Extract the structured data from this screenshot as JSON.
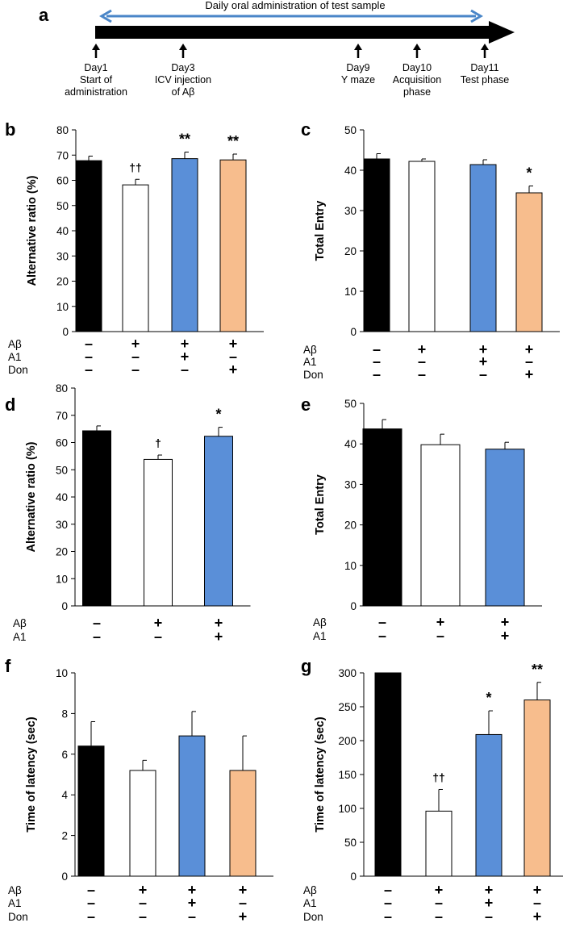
{
  "colors": {
    "black": "#000000",
    "white": "#ffffff",
    "blue": "#5a8fd8",
    "orange": "#f7bd8d",
    "timeline_arrow": "#4a86c8"
  },
  "timeline": {
    "panel_letter": "a",
    "banner": "Daily oral administration of test sample",
    "events": [
      {
        "lines": [
          "Day1",
          "Start of",
          "administration"
        ]
      },
      {
        "lines": [
          "Day3",
          "ICV injection",
          "of Aβ"
        ]
      },
      {
        "lines": [
          "Day9",
          "Y maze"
        ]
      },
      {
        "lines": [
          "Day10",
          "Acquisition",
          "phase"
        ]
      },
      {
        "lines": [
          "Day11",
          "Test phase"
        ]
      }
    ]
  },
  "treatment_labels": [
    "Aβ",
    "A1",
    "Don"
  ],
  "chart_data": [
    {
      "panel": "b",
      "type": "bar",
      "ylabel": "Alternative ratio (%)",
      "ylim": [
        0,
        80
      ],
      "yticks": [
        0,
        10,
        20,
        30,
        40,
        50,
        60,
        70,
        80
      ],
      "values": [
        67.8,
        58.2,
        68.6,
        68.1
      ],
      "errors": [
        1.8,
        2.2,
        2.6,
        2.3
      ],
      "colors": [
        "black",
        "white",
        "blue",
        "orange"
      ],
      "significance": [
        "",
        "††",
        "**",
        "**"
      ],
      "treatments": {
        "Aβ": [
          "–",
          "+",
          "+",
          "+"
        ],
        "A1": [
          "–",
          "–",
          "+",
          "–"
        ],
        "Don": [
          "–",
          "–",
          "–",
          "+"
        ]
      }
    },
    {
      "panel": "c",
      "type": "bar",
      "ylabel": "Total Entry",
      "ylim": [
        0,
        50
      ],
      "yticks": [
        0,
        10,
        20,
        30,
        40,
        50
      ],
      "values": [
        42.8,
        42.2,
        41.4,
        34.4
      ],
      "errors": [
        1.3,
        0.6,
        1.2,
        1.7
      ],
      "colors": [
        "black",
        "white",
        "blue",
        "orange"
      ],
      "significance": [
        "",
        "",
        "",
        "*"
      ],
      "treatments": {
        "Aβ": [
          "–",
          "+",
          "+",
          "+"
        ],
        "A1": [
          "–",
          "–",
          "+",
          "–"
        ],
        "Don": [
          "–",
          "–",
          "–",
          "+"
        ]
      }
    },
    {
      "panel": "d",
      "type": "bar",
      "ylabel": "Alternative ratio (%)",
      "ylim": [
        0,
        80
      ],
      "yticks": [
        0,
        10,
        20,
        30,
        40,
        50,
        60,
        70,
        80
      ],
      "values": [
        64.3,
        53.8,
        62.3
      ],
      "errors": [
        1.8,
        1.6,
        3.3
      ],
      "colors": [
        "black",
        "white",
        "blue"
      ],
      "significance": [
        "",
        "†",
        "*"
      ],
      "treatments": {
        "Aβ": [
          "–",
          "+",
          "+"
        ],
        "A1": [
          "–",
          "–",
          "+"
        ]
      }
    },
    {
      "panel": "e",
      "type": "bar",
      "ylabel": "Total Entry",
      "ylim": [
        0,
        50
      ],
      "yticks": [
        0,
        10,
        20,
        30,
        40,
        50
      ],
      "values": [
        43.7,
        39.8,
        38.7
      ],
      "errors": [
        2.3,
        2.6,
        1.7
      ],
      "colors": [
        "black",
        "white",
        "blue"
      ],
      "significance": [
        "",
        "",
        ""
      ],
      "treatments": {
        "Aβ": [
          "–",
          "+",
          "+"
        ],
        "A1": [
          "–",
          "–",
          "+"
        ]
      }
    },
    {
      "panel": "f",
      "type": "bar",
      "ylabel": "Time of latency (sec)",
      "ylim": [
        0,
        10
      ],
      "yticks": [
        0,
        2,
        4,
        6,
        8,
        10
      ],
      "values": [
        6.4,
        5.2,
        6.9,
        5.2
      ],
      "errors": [
        1.2,
        0.5,
        1.2,
        1.7
      ],
      "colors": [
        "black",
        "white",
        "blue",
        "orange"
      ],
      "significance": [
        "",
        "",
        "",
        ""
      ],
      "treatments": {
        "Aβ": [
          "–",
          "+",
          "+",
          "+"
        ],
        "A1": [
          "–",
          "–",
          "+",
          "–"
        ],
        "Don": [
          "–",
          "–",
          "–",
          "+"
        ]
      }
    },
    {
      "panel": "g",
      "type": "bar",
      "ylabel": "Time of latency (sec)",
      "ylim": [
        0,
        300
      ],
      "yticks": [
        0,
        50,
        100,
        150,
        200,
        250,
        300
      ],
      "values": [
        300,
        96,
        209,
        260
      ],
      "errors": [
        0,
        32,
        35,
        26
      ],
      "colors": [
        "black",
        "white",
        "blue",
        "orange"
      ],
      "significance": [
        "",
        "††",
        "*",
        "**"
      ],
      "treatments": {
        "Aβ": [
          "–",
          "+",
          "+",
          "+"
        ],
        "A1": [
          "–",
          "–",
          "+",
          "–"
        ],
        "Don": [
          "–",
          "–",
          "–",
          "+"
        ]
      }
    }
  ]
}
